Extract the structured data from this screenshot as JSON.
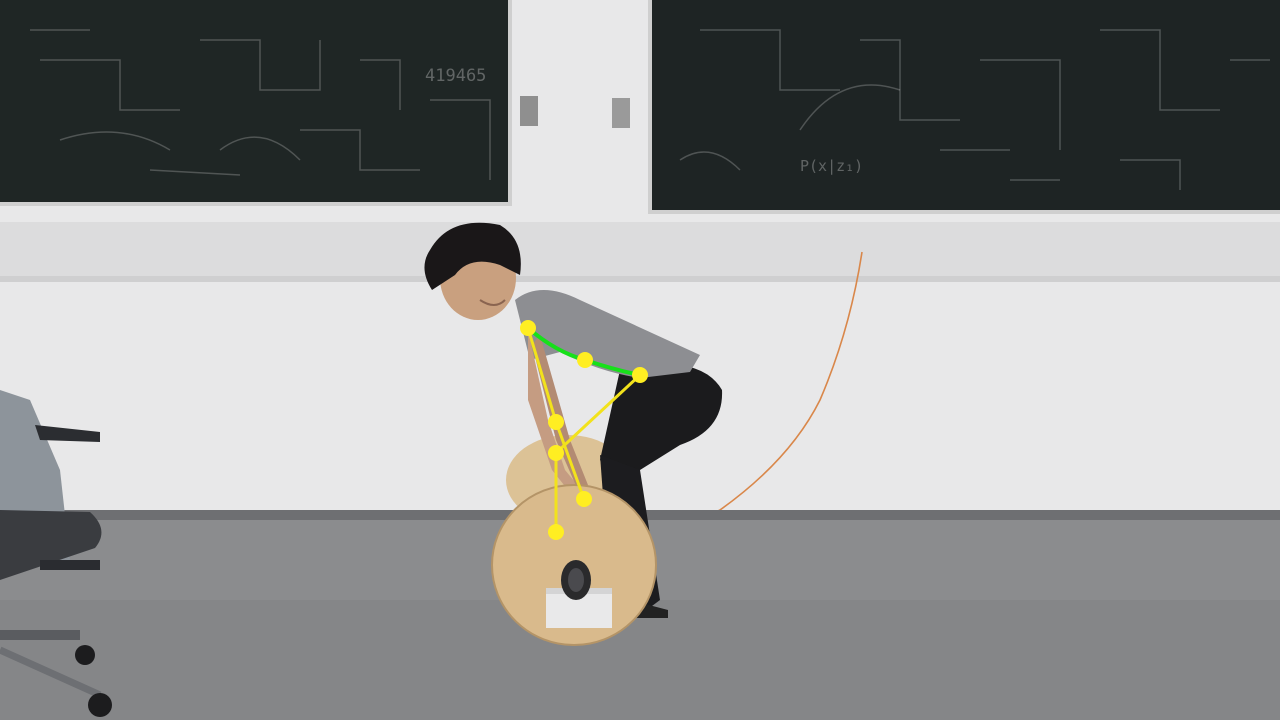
{
  "photo": {
    "chalkboard_left": {
      "visible_text": "419465"
    },
    "chalkboard_right": {
      "visible_text": "P(x|z₁)"
    }
  },
  "pose_overlay": {
    "joint_color": "#ffee22",
    "limb_color": "#f2e21c",
    "back_curve_color": "#17e01a",
    "joints": [
      "shoulder",
      "upper-back",
      "hip",
      "elbow",
      "knee",
      "wrist",
      "ankle",
      "foot"
    ]
  },
  "colors": {
    "wall": "#e9e9ea",
    "floor": "#8c8d8f",
    "chalkboard": "#1e2424",
    "wood_plate": "#d8b98a"
  }
}
